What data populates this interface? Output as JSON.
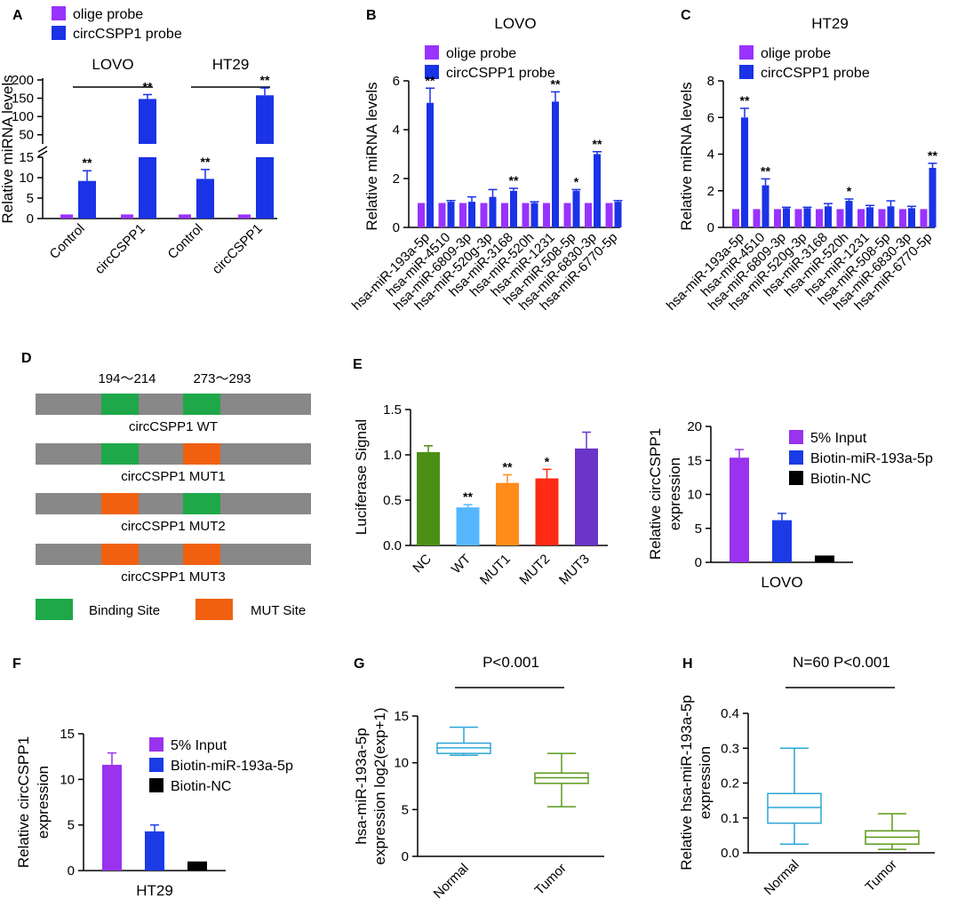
{
  "colors": {
    "olige": "#9933ff",
    "circ": "#1a33e6",
    "input": "#9933ee",
    "biotin_mir": "#1a3be6",
    "biotin_nc": "#000000",
    "grey_bar": "#888888",
    "binding": "#1ea84a",
    "mut": "#f06010",
    "normal_box": "#2aa6d6",
    "tumor_box": "#5a9a1a"
  },
  "chart_data": [
    {
      "id": "A",
      "panel_label": "A",
      "type": "bar",
      "ylabel": "Relative miRNA levels",
      "axis_break": {
        "lower": [
          0,
          15
        ],
        "upper": [
          25,
          200
        ]
      },
      "lower_ticks": [
        "0",
        "5",
        "10",
        "15"
      ],
      "upper_ticks": [
        "50",
        "100",
        "150",
        "200"
      ],
      "groups": [
        {
          "label": "LOVO",
          "cats": [
            {
              "label": "Control",
              "olige": 1,
              "circ": 9.2,
              "circ_err": 2.5,
              "star": "**"
            },
            {
              "label": "circCSPP1",
              "olige": 1,
              "circ": 148,
              "circ_err": 12,
              "star": "**"
            }
          ]
        },
        {
          "label": "HT29",
          "cats": [
            {
              "label": "Control",
              "olige": 1,
              "circ": 9.7,
              "circ_err": 2.3,
              "star": "**"
            },
            {
              "label": "circCSPP1",
              "olige": 1,
              "circ": 158,
              "circ_err": 20,
              "star": "**"
            }
          ]
        }
      ],
      "legend": [
        "olige probe",
        "circCSPP1 probe"
      ]
    },
    {
      "id": "B",
      "panel_label": "B",
      "type": "bar",
      "title": "LOVO",
      "ylabel": "Relative miRNA levels",
      "ylim": [
        0,
        6
      ],
      "yticks": [
        "0",
        "2",
        "4",
        "6"
      ],
      "legend": [
        "olige probe",
        "circCSPP1 probe"
      ],
      "categories": [
        "hsa-miR-193a-5p",
        "hsa-miR-4510",
        "hsa-miR-6809-3p",
        "hsa-miR-520g-3p",
        "hsa-miR-3168",
        "hsa-miR-520h",
        "hsa-miR-1231",
        "hsa-miR-508-5p",
        "hsa-miR-6830-3p",
        "hsa-miR-6770-5p"
      ],
      "series": [
        {
          "name": "olige probe",
          "values": [
            1,
            1,
            1,
            1,
            1,
            1,
            1,
            1,
            1,
            1
          ]
        },
        {
          "name": "circCSPP1 probe",
          "values": [
            5.1,
            1.05,
            1.05,
            1.25,
            1.5,
            1.0,
            5.15,
            1.5,
            3.0,
            1.05
          ],
          "errors": [
            0.6,
            0.05,
            0.2,
            0.3,
            0.1,
            0.05,
            0.4,
            0.05,
            0.1,
            0.05
          ]
        }
      ],
      "stars": [
        "**",
        "",
        "",
        "",
        "**",
        "",
        "**",
        "*",
        "**",
        ""
      ]
    },
    {
      "id": "C",
      "panel_label": "C",
      "type": "bar",
      "title": "HT29",
      "ylabel": "Relative miRNA levels",
      "ylim": [
        0,
        8
      ],
      "yticks": [
        "0",
        "2",
        "4",
        "6",
        "8"
      ],
      "legend": [
        "olige probe",
        "circCSPP1 probe"
      ],
      "categories": [
        "hsa-miR-193a-5p",
        "hsa-miR-4510",
        "hsa-miR-6809-3p",
        "hsa-miR-520g-3p",
        "hsa-miR-3168",
        "hsa-miR-520h",
        "hsa-miR-1231",
        "hsa-miR-508-5p",
        "hsa-miR-6830-3p",
        "hsa-miR-6770-5p"
      ],
      "series": [
        {
          "name": "olige probe",
          "values": [
            1,
            1,
            1,
            1,
            1,
            1,
            1,
            1,
            1,
            1
          ]
        },
        {
          "name": "circCSPP1 probe",
          "values": [
            6.0,
            2.3,
            1.05,
            1.05,
            1.15,
            1.45,
            1.1,
            1.15,
            1.05,
            3.25
          ],
          "errors": [
            0.5,
            0.35,
            0.05,
            0.05,
            0.15,
            0.1,
            0.1,
            0.3,
            0.1,
            0.25
          ]
        }
      ],
      "stars": [
        "**",
        "**",
        "",
        "",
        "",
        "*",
        "",
        "",
        "",
        "**"
      ]
    },
    {
      "id": "D",
      "panel_label": "D",
      "type": "diagram",
      "top_labels": [
        "194～214",
        "273～293"
      ],
      "constructs": [
        {
          "name": "circCSPP1 WT",
          "site1": "binding",
          "site2": "binding"
        },
        {
          "name": "circCSPP1 MUT1",
          "site1": "binding",
          "site2": "mut"
        },
        {
          "name": "circCSPP1 MUT2",
          "site1": "mut",
          "site2": "binding"
        },
        {
          "name": "circCSPP1 MUT3",
          "site1": "mut",
          "site2": "mut"
        }
      ],
      "legend": [
        "Binding Site",
        "MUT Site"
      ]
    },
    {
      "id": "E1",
      "panel_label": "E",
      "type": "bar",
      "ylabel": "Luciferase Signal",
      "ylim": [
        0,
        1.5
      ],
      "yticks": [
        "0.0",
        "0.5",
        "1.0",
        "1.5"
      ],
      "categories": [
        "NC",
        "WT",
        "MUT1",
        "MUT2",
        "MUT3"
      ],
      "values": [
        1.03,
        0.42,
        0.69,
        0.74,
        1.07
      ],
      "errors": [
        0.07,
        0.03,
        0.09,
        0.1,
        0.18
      ],
      "bar_colors": [
        "#4a8f14",
        "#55b8ff",
        "#ff8c1a",
        "#ff2a14",
        "#6a35c8"
      ],
      "stars": [
        "",
        "**",
        "**",
        "*",
        ""
      ]
    },
    {
      "id": "E2",
      "type": "bar",
      "ylabel": "Relative circCSPP1 expression",
      "xlabel": "LOVO",
      "ylim": [
        0,
        20
      ],
      "yticks": [
        "0",
        "5",
        "10",
        "15",
        "20"
      ],
      "categories": [
        "5% Input",
        "Biotin-miR-193a-5p",
        "Biotin-NC"
      ],
      "values": [
        15.4,
        6.2,
        1.0
      ],
      "errors": [
        1.2,
        1.0,
        0
      ]
    },
    {
      "id": "F",
      "panel_label": "F",
      "type": "bar",
      "ylabel": "Relative circCSPP1 expression",
      "xlabel": "HT29",
      "ylim": [
        0,
        15
      ],
      "yticks": [
        "0",
        "5",
        "10",
        "15"
      ],
      "categories": [
        "5% Input",
        "Biotin-miR-193a-5p",
        "Biotin-NC"
      ],
      "values": [
        11.6,
        4.3,
        1.0
      ],
      "errors": [
        1.3,
        0.7,
        0
      ]
    },
    {
      "id": "G",
      "panel_label": "G",
      "type": "box",
      "ylabel": "hsa-miR-193a-5p expression log2(exp+1)",
      "ylim": [
        0,
        15
      ],
      "yticks": [
        "0",
        "5",
        "10",
        "15"
      ],
      "pvalue": "P<0.001",
      "categories": [
        "Normal",
        "Tumor"
      ],
      "boxes": [
        {
          "min": 10.8,
          "q1": 11.0,
          "median": 11.6,
          "q3": 12.1,
          "max": 13.8
        },
        {
          "min": 5.3,
          "q1": 7.8,
          "median": 8.4,
          "q3": 8.9,
          "max": 11.0
        }
      ]
    },
    {
      "id": "H",
      "panel_label": "H",
      "type": "box",
      "ylabel": "Relative hsa-miR-193a-5p expression",
      "ylim": [
        0,
        0.4
      ],
      "yticks": [
        "0.0",
        "0.1",
        "0.2",
        "0.3",
        "0.4"
      ],
      "pvalue": "N=60 P<0.001",
      "categories": [
        "Normal",
        "Tumor"
      ],
      "boxes": [
        {
          "min": 0.025,
          "q1": 0.085,
          "median": 0.13,
          "q3": 0.17,
          "max": 0.3
        },
        {
          "min": 0.01,
          "q1": 0.025,
          "median": 0.045,
          "q3": 0.063,
          "max": 0.112
        }
      ]
    }
  ]
}
